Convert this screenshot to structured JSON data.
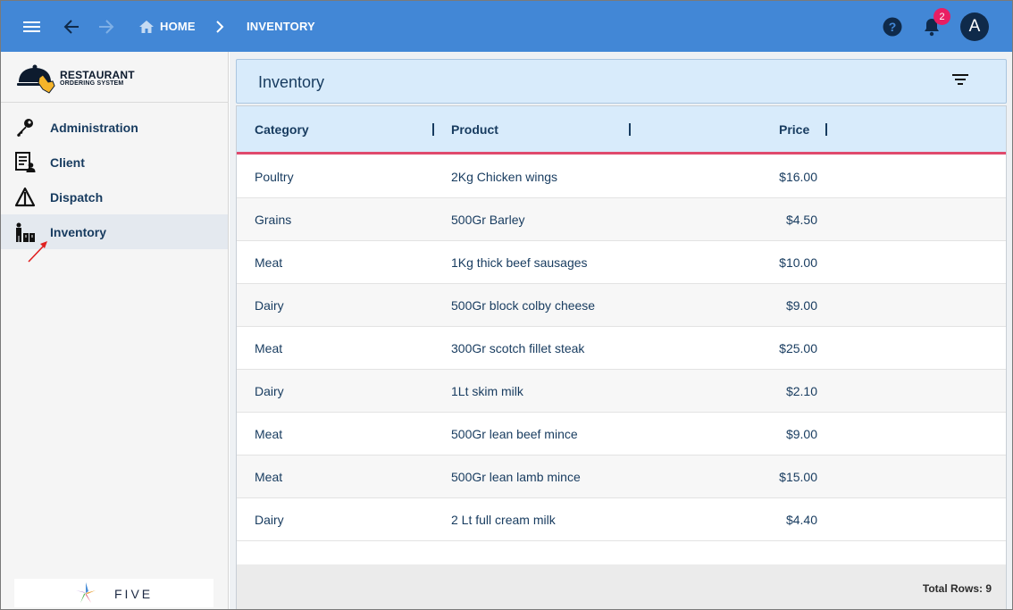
{
  "colors": {
    "topbar": "#4287d6",
    "accent_red": "#e04a6d",
    "header_bg": "#d8ebfb",
    "text_dark": "#173b5f",
    "badge": "#e91e63"
  },
  "topbar": {
    "breadcrumb_home": "HOME",
    "breadcrumb_current": "INVENTORY",
    "notification_count": "2",
    "avatar_initial": "A",
    "icons": [
      "menu-icon",
      "back-arrow-icon",
      "forward-arrow-icon",
      "home-icon",
      "chevron-right-icon",
      "help-icon",
      "bell-icon"
    ]
  },
  "sidebar": {
    "logo_title": "RESTAURANT",
    "logo_subtitle": "ORDERING SYSTEM",
    "items": [
      {
        "label": "Administration",
        "icon": "key-icon"
      },
      {
        "label": "Client",
        "icon": "client-form-icon"
      },
      {
        "label": "Dispatch",
        "icon": "dispatch-icon"
      },
      {
        "label": "Inventory",
        "icon": "inventory-icon",
        "active": true
      }
    ],
    "footer_brand": "FIVE"
  },
  "main": {
    "title": "Inventory",
    "columns": [
      "Category",
      "Product",
      "Price"
    ],
    "rows": [
      {
        "category": "Poultry",
        "product": "2Kg Chicken wings",
        "price": "$16.00"
      },
      {
        "category": "Grains",
        "product": "500Gr Barley",
        "price": "$4.50"
      },
      {
        "category": "Meat",
        "product": "1Kg thick beef sausages",
        "price": "$10.00"
      },
      {
        "category": "Dairy",
        "product": "500Gr block colby cheese",
        "price": "$9.00"
      },
      {
        "category": "Meat",
        "product": "300Gr scotch fillet steak",
        "price": "$25.00"
      },
      {
        "category": "Dairy",
        "product": "1Lt skim milk",
        "price": "$2.10"
      },
      {
        "category": "Meat",
        "product": "500Gr lean beef mince",
        "price": "$9.00"
      },
      {
        "category": "Meat",
        "product": "500Gr lean lamb mince",
        "price": "$15.00"
      },
      {
        "category": "Dairy",
        "product": "2 Lt full cream milk",
        "price": "$4.40"
      }
    ],
    "total_rows": "Total Rows: 9"
  }
}
